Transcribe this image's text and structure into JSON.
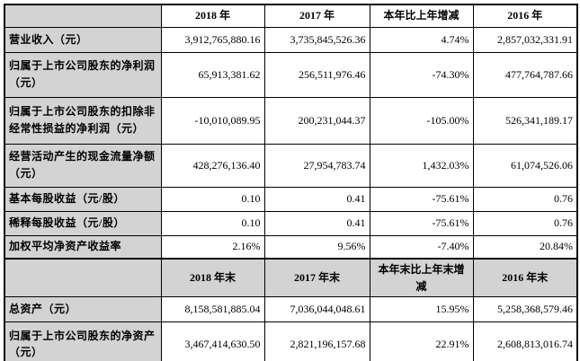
{
  "colors": {
    "header_band_bg": "#d3d3d3",
    "label_column_bg": "#d3d3d3",
    "grid_border": "#000000",
    "cell_bg": "#ffffff",
    "text": "#000000"
  },
  "table": {
    "header1": {
      "corner": "",
      "col_2018": "2018 年",
      "col_2017": "2017 年",
      "col_change": "本年比上年增减",
      "col_2016": "2016 年"
    },
    "rows1": [
      {
        "label": "营业收入（元）",
        "v2018": "3,912,765,880.16",
        "v2017": "3,735,845,526.36",
        "change": "4.74%",
        "v2016": "2,857,032,331.91"
      },
      {
        "label": "归属于上市公司股东的净利润（元）",
        "v2018": "65,913,381.62",
        "v2017": "256,511,976.46",
        "change": "-74.30%",
        "v2016": "477,764,787.66"
      },
      {
        "label": "归属于上市公司股东的扣除非经常性损益的净利润（元）",
        "v2018": "-10,010,089.95",
        "v2017": "200,231,044.37",
        "change": "-105.00%",
        "v2016": "526,341,189.17"
      },
      {
        "label": "经营活动产生的现金流量净额（元）",
        "v2018": "428,276,136.40",
        "v2017": "27,954,783.74",
        "change": "1,432.03%",
        "v2016": "61,074,526.06"
      },
      {
        "label": "基本每股收益（元/股）",
        "v2018": "0.10",
        "v2017": "0.41",
        "change": "-75.61%",
        "v2016": "0.76"
      },
      {
        "label": "稀释每股收益（元/股）",
        "v2018": "0.10",
        "v2017": "0.41",
        "change": "-75.61%",
        "v2016": "0.76"
      },
      {
        "label": "加权平均净资产收益率",
        "v2018": "2.16%",
        "v2017": "9.56%",
        "change": "-7.40%",
        "v2016": "20.84%"
      }
    ],
    "header2": {
      "corner": "",
      "col_2018": "2018 年末",
      "col_2017": "2017 年末",
      "col_change": "本年末比上年末增减",
      "col_2016": "2016 年末"
    },
    "rows2": [
      {
        "label": "总资产（元）",
        "v2018": "8,158,581,885.04",
        "v2017": "7,036,044,048.61",
        "change": "15.95%",
        "v2016": "5,258,368,579.46"
      },
      {
        "label": "归属于上市公司股东的净资产（元）",
        "v2018": "3,467,414,630.50",
        "v2017": "2,821,196,157.68",
        "change": "22.91%",
        "v2016": "2,608,813,016.74"
      }
    ]
  }
}
